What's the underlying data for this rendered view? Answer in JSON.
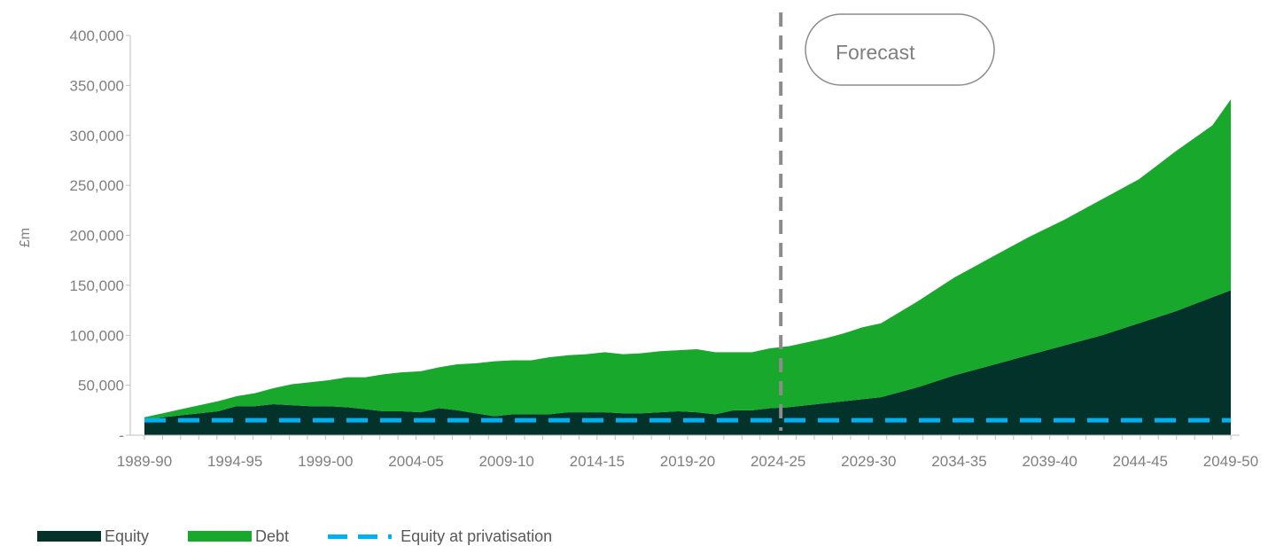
{
  "chart_data": {
    "type": "area",
    "stacked": true,
    "ylabel": "£m",
    "y_ticks": [
      "-",
      "50,000",
      "100,000",
      "150,000",
      "200,000",
      "250,000",
      "300,000",
      "350,000",
      "400,000"
    ],
    "ylim": [
      0,
      400000
    ],
    "x_tick_labels": [
      "1989-90",
      "1994-95",
      "1999-00",
      "2004-05",
      "2009-10",
      "2014-15",
      "2019-20",
      "2024-25",
      "2029-30",
      "2034-35",
      "2039-40",
      "2044-45",
      "2049-50"
    ],
    "x_start_year": 1989,
    "x_end_year": 2049,
    "annotation": {
      "label": "Forecast",
      "divider_at": "2024-25"
    },
    "series": [
      {
        "name": "Equity",
        "color": "#02322a",
        "values": [
          16000,
          18000,
          20000,
          22000,
          24000,
          29000,
          29000,
          31000,
          30000,
          29000,
          29000,
          28000,
          26000,
          24000,
          24000,
          23000,
          27000,
          25000,
          22000,
          19000,
          21000,
          21000,
          21000,
          23000,
          23000,
          23000,
          22000,
          22000,
          23000,
          24000,
          23000,
          21000,
          25000,
          25000,
          27000,
          28000,
          30000,
          32000,
          34000,
          36000,
          38000,
          43000,
          48000,
          54000,
          60000,
          65000,
          70000,
          75000,
          80000,
          85000,
          90000,
          95000,
          100000,
          106000,
          112000,
          118000,
          124000,
          131000,
          138000,
          145000
        ]
      },
      {
        "name": "Debt",
        "color": "#18a92c",
        "values": [
          2000,
          4000,
          6000,
          8000,
          10000,
          10000,
          13000,
          16000,
          21000,
          24000,
          26000,
          30000,
          32000,
          37000,
          39000,
          41000,
          41000,
          46000,
          50000,
          55000,
          54000,
          54000,
          57000,
          57000,
          58000,
          60000,
          59000,
          60000,
          61000,
          61000,
          63000,
          62000,
          58000,
          58000,
          60000,
          61000,
          63000,
          65000,
          68000,
          72000,
          74000,
          80000,
          86000,
          92000,
          98000,
          103000,
          108000,
          113000,
          118000,
          122000,
          126000,
          131000,
          136000,
          140000,
          144000,
          152000,
          160000,
          166000,
          172000,
          191000
        ]
      }
    ],
    "reference_lines": [
      {
        "name": "Equity at privatisation",
        "value": 15000,
        "color": "#00b0f0",
        "style": "dashed"
      }
    ],
    "grid": false,
    "legend_position": "bottom-left"
  }
}
